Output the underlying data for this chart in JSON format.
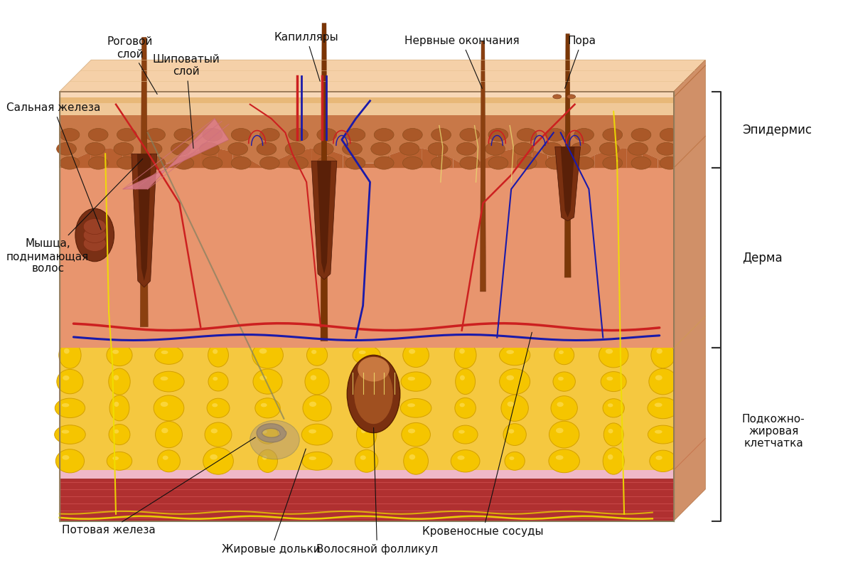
{
  "title": "",
  "fig_width": 12.0,
  "fig_height": 8.1,
  "bg_color": "#ffffff",
  "labels": {
    "salnaya_zheleza": "Сальная железа",
    "rogovoy_sloy": "Роговой\nслой",
    "shipovaty_sloy": "Шиповатый\nслой",
    "kapillyary": "Капилляры",
    "nervnye_okonchaniya": "Нервные окончания",
    "pora": "Пора",
    "myshca": "Мышца,\nподнимающая\nволос",
    "potovaya_zheleza": "Потовая железа",
    "zhirovye_dolki": "Жировые дольки",
    "volosyanoy_follikul": "Волосяной фолликул",
    "krovenosnye_sosudy": "Кровеносные сосуды",
    "epidermis": "Эпидермис",
    "derma": "Дерма",
    "podkozhno": "Подкожно-\nжировая\nклетчатка"
  },
  "colors": {
    "epidermis_outer": "#f5c8a0",
    "epidermis_cells": "#c47840",
    "dermis": "#e8a070",
    "hypodermis": "#f0d060",
    "fat_cells": "#f5c800",
    "fat_border": "#e8a800",
    "muscle_layer1": "#c03030",
    "muscle_layer2": "#d04040",
    "hair_shaft": "#8B4513",
    "hair_follicle": "#8B3010",
    "nerve_yellow": "#f0e000",
    "artery": "#cc2020",
    "vein": "#2020aa",
    "sebaceous": "#a06030",
    "sweat_gland": "#909090",
    "skin_pale": "#f7d4b0",
    "stratum_corneum": "#e8c090",
    "stratum_spinosum": "#dda060"
  }
}
